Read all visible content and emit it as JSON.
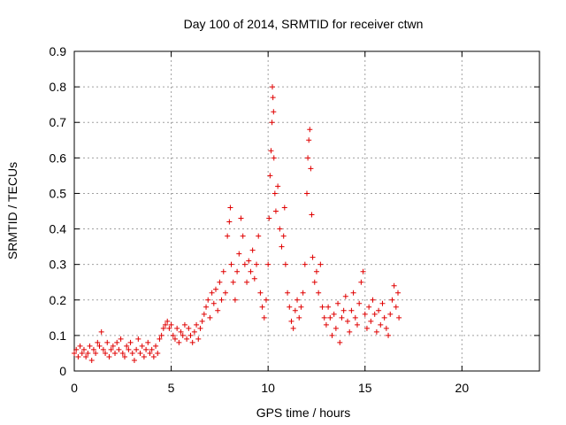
{
  "chart_data": {
    "type": "scatter",
    "title": "Day 100 of 2014, SRMTID for receiver ctwn",
    "xlabel": "GPS time / hours",
    "ylabel": "SRMTID / TECUs",
    "xlim": [
      0,
      24
    ],
    "ylim": [
      0,
      0.9
    ],
    "xticks": [
      0,
      5,
      10,
      15,
      20
    ],
    "xtick_labels": [
      "0",
      "5",
      "10",
      "15",
      "20"
    ],
    "yticks": [
      0,
      0.1,
      0.2,
      0.3,
      0.4,
      0.5,
      0.6,
      0.7,
      0.8,
      0.9
    ],
    "ytick_labels": [
      "0",
      "0.1",
      "0.2",
      "0.3",
      "0.4",
      "0.5",
      "0.6",
      "0.7",
      "0.8",
      "0.9"
    ],
    "grid": true,
    "marker": "+",
    "marker_color": "#e00000",
    "series": [
      {
        "name": "SRMTID",
        "points": [
          [
            0.0,
            0.05
          ],
          [
            0.1,
            0.06
          ],
          [
            0.2,
            0.04
          ],
          [
            0.3,
            0.07
          ],
          [
            0.4,
            0.05
          ],
          [
            0.5,
            0.06
          ],
          [
            0.6,
            0.04
          ],
          [
            0.7,
            0.05
          ],
          [
            0.8,
            0.07
          ],
          [
            0.9,
            0.03
          ],
          [
            1.0,
            0.06
          ],
          [
            1.1,
            0.05
          ],
          [
            1.2,
            0.08
          ],
          [
            1.3,
            0.07
          ],
          [
            1.4,
            0.11
          ],
          [
            1.5,
            0.06
          ],
          [
            1.6,
            0.05
          ],
          [
            1.7,
            0.08
          ],
          [
            1.8,
            0.04
          ],
          [
            1.9,
            0.06
          ],
          [
            2.0,
            0.07
          ],
          [
            2.1,
            0.05
          ],
          [
            2.2,
            0.08
          ],
          [
            2.3,
            0.06
          ],
          [
            2.4,
            0.09
          ],
          [
            2.5,
            0.05
          ],
          [
            2.6,
            0.04
          ],
          [
            2.7,
            0.07
          ],
          [
            2.8,
            0.06
          ],
          [
            2.9,
            0.08
          ],
          [
            3.0,
            0.05
          ],
          [
            3.1,
            0.03
          ],
          [
            3.2,
            0.06
          ],
          [
            3.3,
            0.09
          ],
          [
            3.4,
            0.05
          ],
          [
            3.5,
            0.07
          ],
          [
            3.6,
            0.04
          ],
          [
            3.7,
            0.06
          ],
          [
            3.8,
            0.08
          ],
          [
            3.9,
            0.05
          ],
          [
            4.0,
            0.06
          ],
          [
            4.1,
            0.04
          ],
          [
            4.2,
            0.07
          ],
          [
            4.3,
            0.05
          ],
          [
            4.4,
            0.09
          ],
          [
            4.5,
            0.1
          ],
          [
            4.6,
            0.12
          ],
          [
            4.7,
            0.13
          ],
          [
            4.8,
            0.14
          ],
          [
            4.9,
            0.12
          ],
          [
            5.0,
            0.13
          ],
          [
            5.1,
            0.1
          ],
          [
            5.2,
            0.09
          ],
          [
            5.3,
            0.12
          ],
          [
            5.4,
            0.08
          ],
          [
            5.5,
            0.11
          ],
          [
            5.6,
            0.1
          ],
          [
            5.7,
            0.13
          ],
          [
            5.8,
            0.09
          ],
          [
            5.9,
            0.12
          ],
          [
            6.0,
            0.1
          ],
          [
            6.1,
            0.08
          ],
          [
            6.2,
            0.11
          ],
          [
            6.3,
            0.13
          ],
          [
            6.4,
            0.09
          ],
          [
            6.5,
            0.12
          ],
          [
            6.6,
            0.14
          ],
          [
            6.7,
            0.16
          ],
          [
            6.8,
            0.18
          ],
          [
            6.9,
            0.2
          ],
          [
            7.0,
            0.15
          ],
          [
            7.1,
            0.22
          ],
          [
            7.2,
            0.19
          ],
          [
            7.3,
            0.23
          ],
          [
            7.4,
            0.17
          ],
          [
            7.5,
            0.25
          ],
          [
            7.6,
            0.2
          ],
          [
            7.7,
            0.28
          ],
          [
            7.8,
            0.22
          ],
          [
            7.9,
            0.38
          ],
          [
            8.0,
            0.42
          ],
          [
            8.05,
            0.46
          ],
          [
            8.1,
            0.3
          ],
          [
            8.2,
            0.25
          ],
          [
            8.3,
            0.2
          ],
          [
            8.4,
            0.28
          ],
          [
            8.5,
            0.33
          ],
          [
            8.6,
            0.43
          ],
          [
            8.7,
            0.38
          ],
          [
            8.8,
            0.3
          ],
          [
            8.9,
            0.25
          ],
          [
            9.0,
            0.31
          ],
          [
            9.1,
            0.28
          ],
          [
            9.2,
            0.34
          ],
          [
            9.3,
            0.26
          ],
          [
            9.4,
            0.3
          ],
          [
            9.5,
            0.38
          ],
          [
            9.6,
            0.22
          ],
          [
            9.7,
            0.18
          ],
          [
            9.8,
            0.15
          ],
          [
            9.9,
            0.2
          ],
          [
            10.0,
            0.3
          ],
          [
            10.05,
            0.43
          ],
          [
            10.1,
            0.55
          ],
          [
            10.15,
            0.62
          ],
          [
            10.2,
            0.7
          ],
          [
            10.22,
            0.8
          ],
          [
            10.25,
            0.77
          ],
          [
            10.28,
            0.73
          ],
          [
            10.3,
            0.6
          ],
          [
            10.35,
            0.5
          ],
          [
            10.4,
            0.45
          ],
          [
            10.5,
            0.52
          ],
          [
            10.6,
            0.4
          ],
          [
            10.7,
            0.35
          ],
          [
            10.8,
            0.38
          ],
          [
            10.85,
            0.46
          ],
          [
            10.9,
            0.3
          ],
          [
            11.0,
            0.22
          ],
          [
            11.1,
            0.18
          ],
          [
            11.2,
            0.14
          ],
          [
            11.3,
            0.12
          ],
          [
            11.4,
            0.17
          ],
          [
            11.5,
            0.2
          ],
          [
            11.6,
            0.15
          ],
          [
            11.7,
            0.18
          ],
          [
            11.8,
            0.22
          ],
          [
            11.9,
            0.3
          ],
          [
            12.0,
            0.5
          ],
          [
            12.05,
            0.6
          ],
          [
            12.1,
            0.65
          ],
          [
            12.15,
            0.68
          ],
          [
            12.2,
            0.57
          ],
          [
            12.25,
            0.44
          ],
          [
            12.3,
            0.32
          ],
          [
            12.4,
            0.25
          ],
          [
            12.5,
            0.28
          ],
          [
            12.6,
            0.22
          ],
          [
            12.7,
            0.3
          ],
          [
            12.8,
            0.18
          ],
          [
            12.9,
            0.15
          ],
          [
            13.0,
            0.13
          ],
          [
            13.1,
            0.18
          ],
          [
            13.2,
            0.15
          ],
          [
            13.3,
            0.1
          ],
          [
            13.4,
            0.16
          ],
          [
            13.5,
            0.12
          ],
          [
            13.6,
            0.19
          ],
          [
            13.7,
            0.08
          ],
          [
            13.8,
            0.15
          ],
          [
            13.9,
            0.17
          ],
          [
            14.0,
            0.21
          ],
          [
            14.1,
            0.14
          ],
          [
            14.2,
            0.11
          ],
          [
            14.3,
            0.17
          ],
          [
            14.4,
            0.22
          ],
          [
            14.5,
            0.15
          ],
          [
            14.6,
            0.13
          ],
          [
            14.7,
            0.19
          ],
          [
            14.8,
            0.25
          ],
          [
            14.9,
            0.28
          ],
          [
            15.0,
            0.16
          ],
          [
            15.1,
            0.12
          ],
          [
            15.2,
            0.18
          ],
          [
            15.3,
            0.14
          ],
          [
            15.4,
            0.2
          ],
          [
            15.5,
            0.16
          ],
          [
            15.6,
            0.11
          ],
          [
            15.7,
            0.17
          ],
          [
            15.8,
            0.13
          ],
          [
            15.9,
            0.19
          ],
          [
            16.0,
            0.15
          ],
          [
            16.1,
            0.12
          ],
          [
            16.2,
            0.1
          ],
          [
            16.3,
            0.16
          ],
          [
            16.4,
            0.2
          ],
          [
            16.5,
            0.24
          ],
          [
            16.6,
            0.18
          ],
          [
            16.7,
            0.22
          ],
          [
            16.75,
            0.15
          ]
        ]
      }
    ]
  }
}
